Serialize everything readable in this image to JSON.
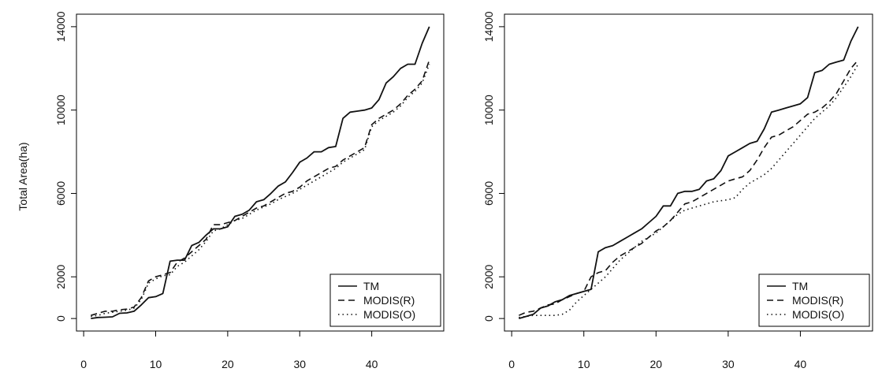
{
  "figure": {
    "ylabel": "Total Area(ha)"
  },
  "colors": {
    "series": "#111111",
    "frame": "#000000"
  },
  "chart_data": [
    {
      "type": "line",
      "title": "",
      "xlabel": "",
      "ylabel": "Total Area(ha)",
      "xlim": [
        1,
        48
      ],
      "ylim": [
        0,
        14000
      ],
      "x_ticks": [
        0,
        10,
        20,
        30,
        40
      ],
      "y_ticks": [
        0,
        2000,
        6000,
        10000,
        14000
      ],
      "legend_position": "bottom-right",
      "series": [
        {
          "name": "TM",
          "style": "solid",
          "x": [
            1,
            2,
            3,
            4,
            5,
            6,
            7,
            8,
            9,
            10,
            11,
            12,
            13,
            14,
            15,
            16,
            17,
            18,
            19,
            20,
            21,
            22,
            23,
            24,
            25,
            26,
            27,
            28,
            29,
            30,
            31,
            32,
            33,
            34,
            35,
            36,
            37,
            38,
            39,
            40,
            41,
            42,
            43,
            44,
            45,
            46,
            47,
            48
          ],
          "values": [
            0,
            50,
            60,
            80,
            250,
            270,
            350,
            650,
            1000,
            1050,
            1200,
            2750,
            2800,
            2800,
            3500,
            3650,
            4000,
            4300,
            4300,
            4400,
            4900,
            5000,
            5200,
            5600,
            5700,
            6000,
            6350,
            6550,
            7000,
            7500,
            7700,
            8000,
            8000,
            8200,
            8250,
            9600,
            9900,
            9950,
            10000,
            10100,
            10500,
            11300,
            11600,
            12000,
            12200,
            12200,
            13200,
            14000
          ]
        },
        {
          "name": "MODIS(R)",
          "style": "dashed",
          "x": [
            1,
            2,
            3,
            4,
            5,
            6,
            7,
            8,
            9,
            10,
            11,
            12,
            13,
            14,
            15,
            16,
            17,
            18,
            19,
            20,
            21,
            22,
            23,
            24,
            25,
            26,
            27,
            28,
            29,
            30,
            31,
            32,
            33,
            34,
            35,
            36,
            37,
            38,
            39,
            40,
            41,
            42,
            43,
            44,
            45,
            46,
            47,
            48
          ],
          "values": [
            150,
            250,
            350,
            350,
            420,
            450,
            550,
            1000,
            1800,
            2000,
            2100,
            2200,
            2700,
            2900,
            3200,
            3500,
            3800,
            4500,
            4500,
            4600,
            4700,
            4900,
            5100,
            5300,
            5400,
            5600,
            5800,
            6000,
            6100,
            6300,
            6600,
            6800,
            7000,
            7200,
            7300,
            7600,
            7800,
            8000,
            8200,
            9300,
            9600,
            9800,
            10000,
            10300,
            10700,
            11000,
            11400,
            12400
          ]
        },
        {
          "name": "MODIS(O)",
          "style": "dotted",
          "x": [
            1,
            2,
            3,
            4,
            5,
            6,
            7,
            8,
            9,
            10,
            11,
            12,
            13,
            14,
            15,
            16,
            17,
            18,
            19,
            20,
            21,
            22,
            23,
            24,
            25,
            26,
            27,
            28,
            29,
            30,
            31,
            32,
            33,
            34,
            35,
            36,
            37,
            38,
            39,
            40,
            41,
            42,
            43,
            44,
            45,
            46,
            47,
            48
          ],
          "values": [
            100,
            150,
            250,
            300,
            350,
            400,
            500,
            900,
            1700,
            1900,
            2050,
            2100,
            2500,
            2700,
            3000,
            3300,
            3700,
            4200,
            4300,
            4500,
            4700,
            4800,
            5000,
            5200,
            5350,
            5500,
            5700,
            5850,
            6000,
            6200,
            6400,
            6600,
            6800,
            7000,
            7200,
            7500,
            7700,
            7900,
            8100,
            9200,
            9500,
            9700,
            9900,
            10200,
            10600,
            10900,
            11300,
            12200
          ]
        }
      ]
    },
    {
      "type": "line",
      "title": "",
      "xlabel": "",
      "ylabel": "",
      "xlim": [
        1,
        48
      ],
      "ylim": [
        0,
        14000
      ],
      "x_ticks": [
        0,
        10,
        20,
        30,
        40
      ],
      "y_ticks": [
        0,
        2000,
        6000,
        10000,
        14000
      ],
      "legend_position": "bottom-right",
      "series": [
        {
          "name": "TM",
          "style": "solid",
          "x": [
            1,
            2,
            3,
            4,
            5,
            6,
            7,
            8,
            9,
            10,
            11,
            12,
            13,
            14,
            15,
            16,
            17,
            18,
            19,
            20,
            21,
            22,
            23,
            24,
            25,
            26,
            27,
            28,
            29,
            30,
            31,
            32,
            33,
            34,
            35,
            36,
            37,
            38,
            39,
            40,
            41,
            42,
            43,
            44,
            45,
            46,
            47,
            48
          ],
          "values": [
            0,
            100,
            200,
            500,
            600,
            800,
            900,
            1100,
            1200,
            1300,
            1400,
            3200,
            3400,
            3500,
            3700,
            3900,
            4100,
            4300,
            4600,
            4900,
            5400,
            5400,
            6000,
            6100,
            6100,
            6200,
            6600,
            6700,
            7100,
            7800,
            8000,
            8200,
            8400,
            8500,
            9100,
            9900,
            10000,
            10100,
            10200,
            10300,
            10600,
            11800,
            11900,
            12200,
            12300,
            12400,
            13300,
            14000
          ]
        },
        {
          "name": "MODIS(R)",
          "style": "dashed",
          "x": [
            1,
            2,
            3,
            4,
            5,
            6,
            7,
            8,
            9,
            10,
            11,
            12,
            13,
            14,
            15,
            16,
            17,
            18,
            19,
            20,
            21,
            22,
            23,
            24,
            25,
            26,
            27,
            28,
            29,
            30,
            31,
            32,
            33,
            34,
            35,
            36,
            37,
            38,
            39,
            40,
            41,
            42,
            43,
            44,
            45,
            46,
            47,
            48
          ],
          "values": [
            150,
            300,
            350,
            500,
            650,
            700,
            900,
            1050,
            1200,
            1300,
            2000,
            2200,
            2300,
            2700,
            3000,
            3200,
            3400,
            3600,
            3900,
            4200,
            4400,
            4700,
            5100,
            5500,
            5600,
            5800,
            6000,
            6200,
            6400,
            6600,
            6700,
            6800,
            7100,
            7600,
            8200,
            8700,
            8800,
            9000,
            9200,
            9500,
            9800,
            9900,
            10100,
            10400,
            10800,
            11400,
            12000,
            12400
          ]
        },
        {
          "name": "MODIS(O)",
          "style": "dotted",
          "x": [
            1,
            2,
            3,
            4,
            5,
            6,
            7,
            8,
            9,
            10,
            11,
            12,
            13,
            14,
            15,
            16,
            17,
            18,
            19,
            20,
            21,
            22,
            23,
            24,
            25,
            26,
            27,
            28,
            29,
            30,
            31,
            32,
            33,
            34,
            35,
            36,
            37,
            38,
            39,
            40,
            41,
            42,
            43,
            44,
            45,
            46,
            47,
            48
          ],
          "values": [
            50,
            100,
            150,
            150,
            150,
            150,
            200,
            400,
            800,
            1100,
            1400,
            1700,
            2000,
            2400,
            2800,
            3100,
            3400,
            3700,
            3900,
            4100,
            4400,
            4700,
            5000,
            5200,
            5300,
            5400,
            5500,
            5600,
            5650,
            5700,
            5800,
            6200,
            6500,
            6700,
            6900,
            7200,
            7600,
            8000,
            8400,
            8800,
            9200,
            9600,
            9900,
            10200,
            10600,
            11100,
            11600,
            12200
          ]
        }
      ]
    }
  ]
}
